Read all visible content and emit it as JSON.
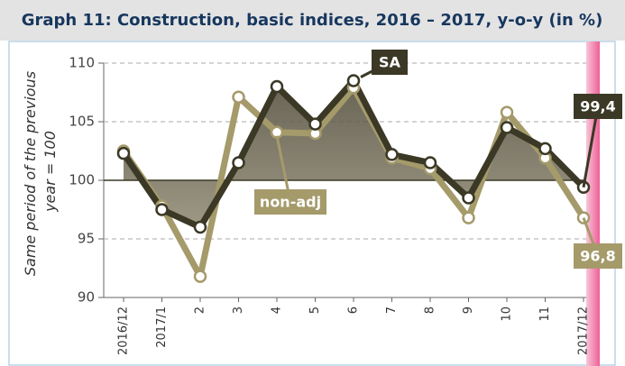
{
  "chart_data": {
    "type": "line",
    "title": "Graph 11: Construction, basic indices, 2016 – 2017, y-o-y (in %)",
    "ylabel": [
      "Same period of the previous",
      "year = 100"
    ],
    "categories": [
      "2016/12",
      "2017/1",
      "2",
      "3",
      "4",
      "5",
      "6",
      "7",
      "8",
      "9",
      "10",
      "11",
      "2017/12"
    ],
    "series": [
      {
        "name": "non-adj",
        "color": "#a59a6a",
        "values": [
          102.5,
          97.8,
          91.8,
          107.1,
          104.1,
          104.0,
          107.9,
          101.9,
          101.0,
          96.8,
          105.8,
          101.9,
          96.8
        ],
        "value_labels": [
          null,
          null,
          null,
          null,
          null,
          null,
          null,
          null,
          null,
          null,
          null,
          null,
          "96,8"
        ]
      },
      {
        "name": "SA",
        "color": "#3b3826",
        "values": [
          102.3,
          97.5,
          96.0,
          101.5,
          108.0,
          104.8,
          108.5,
          102.2,
          101.5,
          98.5,
          104.5,
          102.7,
          99.4
        ],
        "value_labels": [
          null,
          null,
          null,
          null,
          null,
          null,
          null,
          null,
          null,
          null,
          null,
          null,
          "99,4"
        ]
      }
    ],
    "ylim": [
      90,
      110
    ],
    "yticks": [
      90,
      95,
      100,
      105,
      110
    ],
    "grid": true,
    "baseline": 100
  }
}
